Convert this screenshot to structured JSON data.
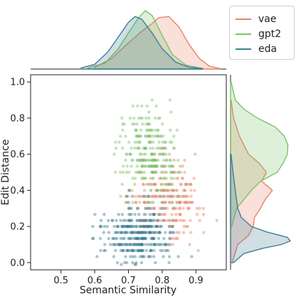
{
  "chart_data": {
    "type": "scatter",
    "xlabel": "Semantic Similarity",
    "ylabel": "Edit Distance",
    "xlim": [
      0.41,
      0.99
    ],
    "ylim": [
      -0.04,
      1.04
    ],
    "xticks": [
      0.5,
      0.6,
      0.7,
      0.8,
      0.9
    ],
    "xtick_labels": [
      "0.5",
      "0.6",
      "0.7",
      "0.8",
      "0.9"
    ],
    "yticks": [
      0.0,
      0.2,
      0.4,
      0.6,
      0.8,
      1.0
    ],
    "ytick_labels": [
      "0.0",
      "0.2",
      "0.4",
      "0.6",
      "0.8",
      "1.0"
    ],
    "legend_position": "top-right",
    "marginal_x": "density",
    "marginal_y": "density",
    "series": [
      {
        "name": "vae",
        "color": "#e8826a",
        "x_mean": 0.81,
        "x_sd": 0.055,
        "y_mean": 0.34,
        "y_sd": 0.11,
        "x_kde": [
          [
            0.6,
            0.03
          ],
          [
            0.65,
            0.18
          ],
          [
            0.7,
            0.45
          ],
          [
            0.74,
            0.65
          ],
          [
            0.77,
            0.78
          ],
          [
            0.79,
            0.88
          ],
          [
            0.82,
            0.9
          ],
          [
            0.85,
            0.72
          ],
          [
            0.88,
            0.42
          ],
          [
            0.91,
            0.18
          ],
          [
            0.94,
            0.05
          ],
          [
            0.97,
            0.01
          ]
        ],
        "y_kde": [
          [
            0.0,
            0.03
          ],
          [
            0.1,
            0.12
          ],
          [
            0.15,
            0.3
          ],
          [
            0.2,
            0.38
          ],
          [
            0.25,
            0.4
          ],
          [
            0.3,
            0.5
          ],
          [
            0.35,
            0.58
          ],
          [
            0.4,
            0.7
          ],
          [
            0.45,
            0.52
          ],
          [
            0.5,
            0.6
          ],
          [
            0.55,
            0.48
          ],
          [
            0.6,
            0.3
          ],
          [
            0.7,
            0.15
          ],
          [
            0.8,
            0.05
          ],
          [
            0.9,
            0.01
          ]
        ]
      },
      {
        "name": "gpt2",
        "color": "#7dc26a",
        "x_mean": 0.76,
        "x_sd": 0.045,
        "y_mean": 0.6,
        "y_sd": 0.12,
        "x_kde": [
          [
            0.58,
            0.02
          ],
          [
            0.63,
            0.1
          ],
          [
            0.67,
            0.35
          ],
          [
            0.7,
            0.62
          ],
          [
            0.73,
            0.88
          ],
          [
            0.75,
            1.0
          ],
          [
            0.77,
            0.92
          ],
          [
            0.8,
            0.58
          ],
          [
            0.83,
            0.25
          ],
          [
            0.87,
            0.07
          ],
          [
            0.92,
            0.01
          ]
        ],
        "y_kde": [
          [
            0.2,
            0.02
          ],
          [
            0.3,
            0.1
          ],
          [
            0.4,
            0.35
          ],
          [
            0.45,
            0.5
          ],
          [
            0.5,
            0.78
          ],
          [
            0.55,
            0.88
          ],
          [
            0.6,
            0.95
          ],
          [
            0.65,
            0.96
          ],
          [
            0.7,
            0.9
          ],
          [
            0.75,
            0.75
          ],
          [
            0.8,
            0.45
          ],
          [
            0.85,
            0.22
          ],
          [
            0.9,
            0.08
          ],
          [
            1.0,
            0.01
          ]
        ]
      },
      {
        "name": "eda",
        "color": "#3f7f94",
        "x_mean": 0.73,
        "x_sd": 0.05,
        "y_mean": 0.15,
        "y_sd": 0.08,
        "x_kde": [
          [
            0.56,
            0.02
          ],
          [
            0.6,
            0.08
          ],
          [
            0.64,
            0.3
          ],
          [
            0.67,
            0.55
          ],
          [
            0.7,
            0.8
          ],
          [
            0.72,
            0.9
          ],
          [
            0.74,
            0.85
          ],
          [
            0.77,
            0.62
          ],
          [
            0.8,
            0.35
          ],
          [
            0.84,
            0.12
          ],
          [
            0.88,
            0.03
          ],
          [
            0.92,
            0.01
          ]
        ],
        "y_kde": [
          [
            0.0,
            0.05
          ],
          [
            0.05,
            0.22
          ],
          [
            0.08,
            0.55
          ],
          [
            0.1,
            0.85
          ],
          [
            0.12,
            1.0
          ],
          [
            0.14,
            0.95
          ],
          [
            0.17,
            0.6
          ],
          [
            0.2,
            0.35
          ],
          [
            0.25,
            0.18
          ],
          [
            0.3,
            0.12
          ],
          [
            0.35,
            0.1
          ],
          [
            0.4,
            0.08
          ],
          [
            0.5,
            0.04
          ],
          [
            0.6,
            0.01
          ]
        ]
      }
    ]
  }
}
